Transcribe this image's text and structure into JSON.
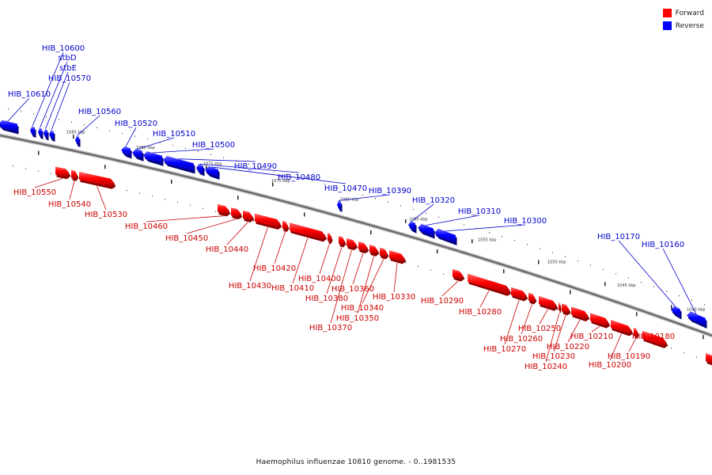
{
  "legend": {
    "forward_label": "Forward",
    "reverse_label": "Reverse",
    "forward_color": "#ff0000",
    "reverse_color": "#0000ff"
  },
  "caption": "Haemophilus influenzae 10810 genome. - 0..1981535",
  "scale_labels": [
    "1085 kbp",
    "1080 kbp",
    "1075 kbp",
    "1070 kbp",
    "1065 kbp",
    "1060 kbp",
    "1055 kbp",
    "1050 kbp",
    "1045 kbp",
    "1040 kbp"
  ],
  "genes": {
    "reverse": [
      "HIB_10610",
      "HIB_10600",
      "stbD",
      "stbE",
      "HIB_10570",
      "HIB_10560",
      "HIB_10520",
      "HIB_10510",
      "HIB_10500",
      "HIB_10490",
      "HIB_10480",
      "HIB_10470",
      "HIB_10390",
      "HIB_10320",
      "HIB_10310",
      "HIB_10300",
      "HIB_10170",
      "HIB_10160"
    ],
    "forward": [
      "HIB_10550",
      "HIB_10540",
      "HIB_10530",
      "HIB_10460",
      "HIB_10450",
      "HIB_10440",
      "HIB_10430",
      "HIB_10420",
      "HIB_10410",
      "HIB_10400",
      "HIB_10380",
      "HIB_10370",
      "HIB_10360",
      "HIB_10350",
      "HIB_10340",
      "HIB_10330",
      "HIB_10290",
      "HIB_10280",
      "HIB_10270",
      "HIB_10260",
      "HIB_10250",
      "HIB_10240",
      "HIB_10230",
      "HIB_10220",
      "HIB_10210",
      "HIB_10200",
      "HIB_10190",
      "HIB_10180"
    ]
  }
}
